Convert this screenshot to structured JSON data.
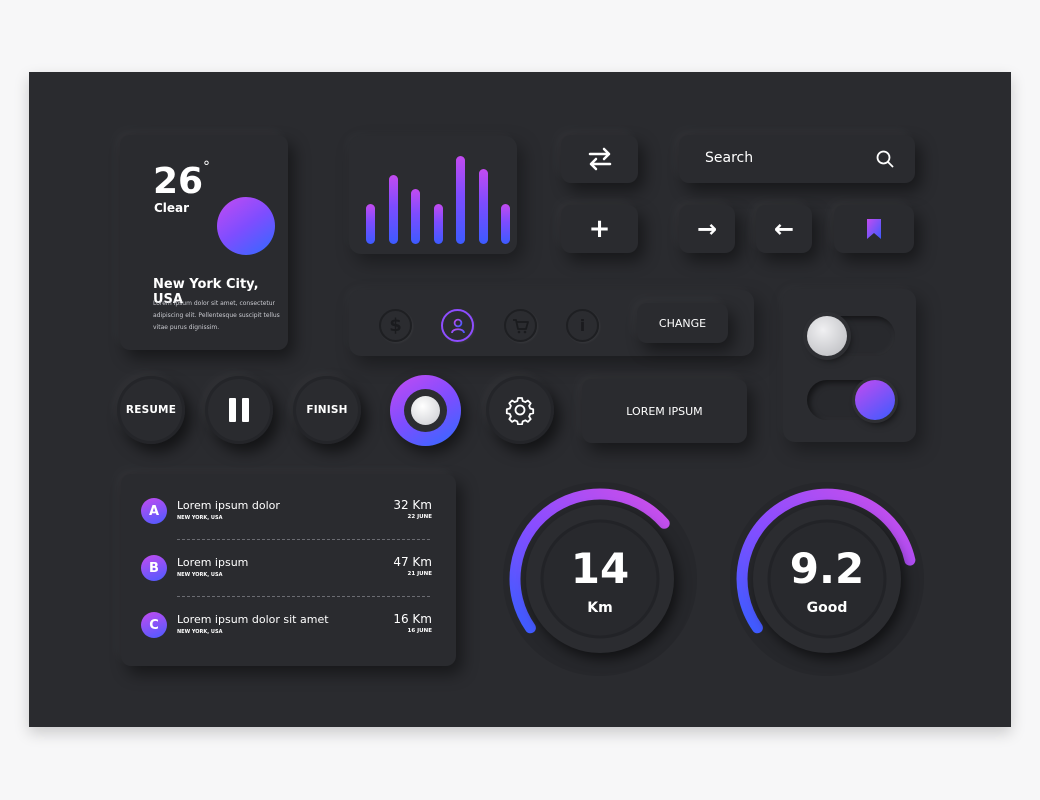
{
  "colors": {
    "background": "#2a2b2f",
    "accent_purple": "#c34bf0",
    "accent_blue": "#3c5bff"
  },
  "weather": {
    "temperature": "26",
    "degree_symbol": "°",
    "condition": "Clear",
    "city": "New York City, USA",
    "description_line1": "Lorem ipsum dolor sit amet, consectetur",
    "description_line2": "adipiscing elit. Pellentesque suscipit tellus",
    "description_line3": "vitae purus dignissim."
  },
  "equalizer": {
    "levels": [
      0.45,
      0.78,
      0.62,
      0.45,
      1.0,
      0.85,
      0.45
    ]
  },
  "controls": {
    "swap_icon": "swap-arrows-icon",
    "plus_label": "+",
    "arrow_right": "→",
    "arrow_left": "←",
    "bookmark_icon": "bookmark-icon"
  },
  "search": {
    "placeholder": "Search",
    "icon": "search-icon"
  },
  "icon_bar": {
    "icons": [
      "dollar-icon",
      "user-icon",
      "cart-icon",
      "info-icon"
    ],
    "dollar_glyph": "$",
    "info_glyph": "i",
    "active_index": 1
  },
  "buttons": {
    "change": "CHANGE",
    "lorem_ipsum": "LOREM IPSUM",
    "resume": "RESUME",
    "finish": "FINISH"
  },
  "toggles": [
    {
      "state": "off"
    },
    {
      "state": "on"
    }
  ],
  "list": {
    "items": [
      {
        "badge": "A",
        "title": "Lorem ipsum dolor",
        "subtitle": "NEW YORK, USA",
        "distance": "32 Km",
        "date": "22 JUNE"
      },
      {
        "badge": "B",
        "title": "Lorem ipsum",
        "subtitle": "NEW YORK, USA",
        "distance": "47 Km",
        "date": "21 JUNE"
      },
      {
        "badge": "C",
        "title": "Lorem ipsum dolor sit amet",
        "subtitle": "NEW YORK, USA",
        "distance": "16 Km",
        "date": "16 JUNE"
      }
    ]
  },
  "gauges": [
    {
      "value": "14",
      "unit": "Km",
      "progress": 0.62
    },
    {
      "value": "9.2",
      "unit": "Good",
      "progress": 0.72
    }
  ]
}
